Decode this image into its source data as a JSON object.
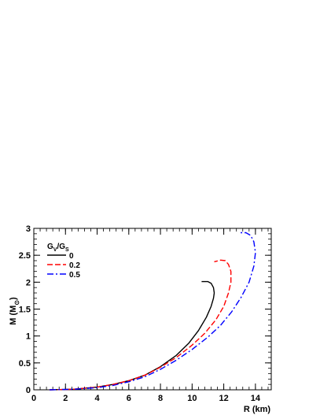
{
  "chart_data": {
    "type": "line",
    "title": "",
    "xlabel": "R (km)",
    "ylabel_main": "M (M",
    "ylabel_sub": "⊙",
    "ylabel_close": ")",
    "xlim": [
      0,
      15
    ],
    "ylim": [
      0,
      3
    ],
    "x_ticks": [
      0,
      2,
      4,
      6,
      8,
      10,
      12,
      14
    ],
    "y_ticks": [
      0,
      0.5,
      1,
      1.5,
      2,
      2.5,
      3
    ],
    "x_tick_labels": [
      "0",
      "2",
      "4",
      "6",
      "8",
      "10",
      "12",
      "14"
    ],
    "y_tick_labels": [
      "0",
      "0.5",
      "1",
      "1.5",
      "2",
      "2.5",
      "3"
    ],
    "grid": false,
    "legend": {
      "placement": "top-left",
      "title_main": "G",
      "title_sub1": "V",
      "title_mid": "/G",
      "title_sub2": "S"
    },
    "series": [
      {
        "name": "0",
        "color": "#000000",
        "dash": "solid",
        "x": [
          1.0,
          2.5,
          4.0,
          5.0,
          6.0,
          7.0,
          8.0,
          9.0,
          9.8,
          10.4,
          10.9,
          11.2,
          11.35,
          11.4,
          11.35,
          11.2,
          11.0,
          10.6
        ],
        "y": [
          0.0,
          0.01,
          0.05,
          0.1,
          0.17,
          0.27,
          0.43,
          0.64,
          0.87,
          1.1,
          1.35,
          1.55,
          1.7,
          1.8,
          1.9,
          1.98,
          2.01,
          2.01
        ]
      },
      {
        "name": "0.2",
        "color": "#ff0000",
        "dash": "dashed",
        "x": [
          1.0,
          2.5,
          4.0,
          5.0,
          6.0,
          7.0,
          8.0,
          9.0,
          10.0,
          10.8,
          11.5,
          12.0,
          12.3,
          12.45,
          12.45,
          12.3,
          12.1,
          11.8,
          11.4
        ],
        "y": [
          0.0,
          0.01,
          0.05,
          0.1,
          0.17,
          0.27,
          0.42,
          0.6,
          0.83,
          1.05,
          1.3,
          1.55,
          1.8,
          2.0,
          2.2,
          2.33,
          2.4,
          2.41,
          2.38
        ]
      },
      {
        "name": "0.5",
        "color": "#0000ff",
        "dash": "dashdot",
        "x": [
          1.0,
          2.5,
          4.0,
          5.0,
          6.0,
          7.0,
          8.0,
          9.0,
          10.0,
          11.0,
          11.8,
          12.5,
          13.1,
          13.6,
          13.9,
          14.0,
          13.9,
          13.7,
          13.4,
          13.0
        ],
        "y": [
          0.0,
          0.01,
          0.04,
          0.08,
          0.15,
          0.24,
          0.38,
          0.55,
          0.75,
          0.98,
          1.2,
          1.45,
          1.72,
          2.0,
          2.3,
          2.55,
          2.75,
          2.87,
          2.92,
          2.92
        ]
      }
    ]
  }
}
